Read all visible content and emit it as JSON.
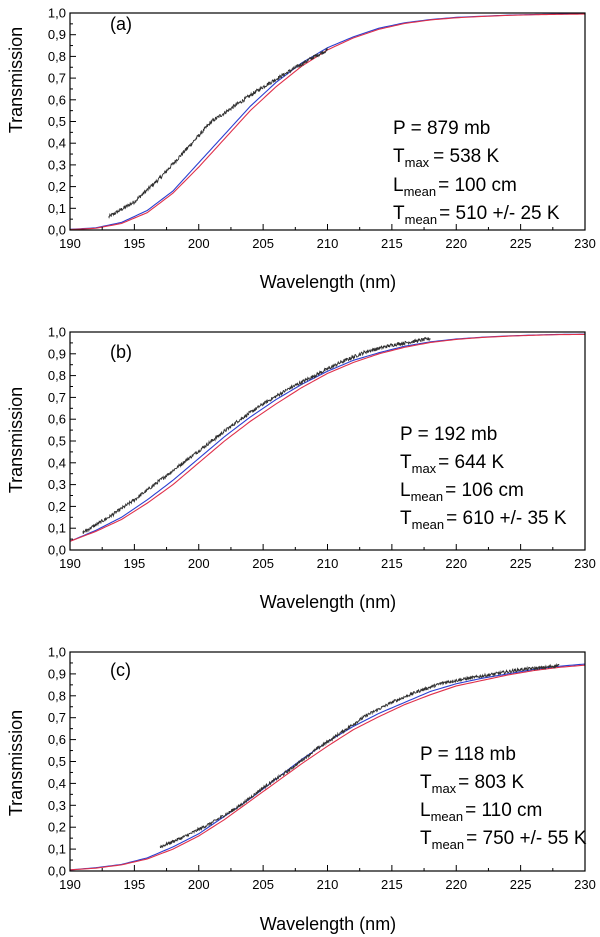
{
  "chart_data": [
    {
      "type": "line",
      "panel_label": "(a)",
      "xlabel": "Wavelength (nm)",
      "ylabel": "Transmission",
      "xlim": [
        190,
        230
      ],
      "ylim": [
        0,
        1.0
      ],
      "x_ticks": [
        "190",
        "195",
        "200",
        "205",
        "210",
        "215",
        "220",
        "225",
        "230"
      ],
      "y_ticks": [
        "0,0",
        "0,1",
        "0,2",
        "0,3",
        "0,4",
        "0,5",
        "0,6",
        "0,7",
        "0,8",
        "0,9",
        "1,0"
      ],
      "annotation": {
        "p_line": "P = 879 mb",
        "tmax_base": "T",
        "tmax_sub": "max",
        "tmax_val": "= 538 K",
        "lmean_base": "L",
        "lmean_sub": "mean",
        "lmean_val": "= 100 cm",
        "tmean_base": "T",
        "tmean_sub": "mean",
        "tmean_val": "= 510 +/- 25 K"
      },
      "series": [
        {
          "name": "measured",
          "color": "#303030",
          "noise": 0.009,
          "x": [
            193,
            195,
            197,
            199,
            201,
            203,
            205,
            207,
            209,
            210
          ],
          "y": [
            0.06,
            0.13,
            0.24,
            0.37,
            0.5,
            0.58,
            0.66,
            0.73,
            0.8,
            0.83
          ]
        },
        {
          "name": "model-blue",
          "color": "#2a3fd0",
          "x": [
            190,
            192,
            194,
            196,
            198,
            200,
            202,
            204,
            206,
            208,
            210,
            212,
            214,
            216,
            218,
            220,
            222,
            224,
            226,
            228,
            230
          ],
          "y": [
            0.003,
            0.01,
            0.035,
            0.09,
            0.18,
            0.31,
            0.44,
            0.57,
            0.68,
            0.77,
            0.84,
            0.89,
            0.93,
            0.955,
            0.97,
            0.98,
            0.985,
            0.99,
            0.993,
            0.995,
            0.996
          ]
        },
        {
          "name": "model-red",
          "color": "#e0304a",
          "x": [
            190,
            192,
            194,
            196,
            198,
            200,
            202,
            204,
            206,
            208,
            210,
            212,
            214,
            216,
            218,
            220,
            222,
            224,
            226,
            228,
            230
          ],
          "y": [
            0.002,
            0.008,
            0.03,
            0.08,
            0.17,
            0.29,
            0.42,
            0.55,
            0.66,
            0.755,
            0.83,
            0.885,
            0.925,
            0.952,
            0.968,
            0.978,
            0.984,
            0.989,
            0.992,
            0.994,
            0.995
          ]
        }
      ]
    },
    {
      "type": "line",
      "panel_label": "(b)",
      "xlabel": "Wavelength (nm)",
      "ylabel": "Transmission",
      "xlim": [
        190,
        230
      ],
      "ylim": [
        0,
        1.0
      ],
      "x_ticks": [
        "190",
        "195",
        "200",
        "205",
        "210",
        "215",
        "220",
        "225",
        "230"
      ],
      "y_ticks": [
        "0,0",
        "0,1",
        "0,2",
        "0,3",
        "0,4",
        "0,5",
        "0,6",
        "0,7",
        "0,8",
        "0,9",
        "1,0"
      ],
      "annotation": {
        "p_line": "P = 192 mb",
        "tmax_base": "T",
        "tmax_sub": "max",
        "tmax_val": "= 644 K",
        "lmean_base": "L",
        "lmean_sub": "mean",
        "lmean_val": "= 106 cm",
        "tmean_base": "T",
        "tmean_sub": "mean",
        "tmean_val": "= 610 +/- 35 K"
      },
      "series": [
        {
          "name": "measured",
          "color": "#303030",
          "noise": 0.008,
          "x": [
            191,
            193,
            195,
            197,
            199,
            201,
            203,
            205,
            207,
            209,
            211,
            213,
            215,
            217,
            218
          ],
          "y": [
            0.08,
            0.15,
            0.23,
            0.32,
            0.41,
            0.5,
            0.59,
            0.67,
            0.74,
            0.8,
            0.86,
            0.91,
            0.94,
            0.96,
            0.97
          ]
        },
        {
          "name": "model-blue",
          "color": "#2a3fd0",
          "x": [
            190,
            192,
            194,
            196,
            198,
            200,
            202,
            204,
            206,
            208,
            210,
            212,
            214,
            216,
            218,
            220,
            222,
            224,
            226,
            228,
            230
          ],
          "y": [
            0.04,
            0.09,
            0.15,
            0.23,
            0.32,
            0.42,
            0.52,
            0.61,
            0.69,
            0.76,
            0.82,
            0.87,
            0.905,
            0.935,
            0.955,
            0.968,
            0.976,
            0.982,
            0.986,
            0.989,
            0.99
          ]
        },
        {
          "name": "model-red",
          "color": "#e0304a",
          "x": [
            190,
            192,
            194,
            196,
            198,
            200,
            202,
            204,
            206,
            208,
            210,
            212,
            214,
            216,
            218,
            220,
            222,
            224,
            226,
            228,
            230
          ],
          "y": [
            0.04,
            0.085,
            0.14,
            0.215,
            0.3,
            0.4,
            0.5,
            0.59,
            0.67,
            0.745,
            0.81,
            0.86,
            0.9,
            0.93,
            0.952,
            0.966,
            0.975,
            0.981,
            0.985,
            0.988,
            0.989
          ]
        }
      ]
    },
    {
      "type": "line",
      "panel_label": "(c)",
      "xlabel": "Wavelength (nm)",
      "ylabel": "Transmission",
      "xlim": [
        190,
        230
      ],
      "ylim": [
        0,
        1.0
      ],
      "x_ticks": [
        "190",
        "195",
        "200",
        "205",
        "210",
        "215",
        "220",
        "225",
        "230"
      ],
      "y_ticks": [
        "0,0",
        "0,1",
        "0,2",
        "0,3",
        "0,4",
        "0,5",
        "0,6",
        "0,7",
        "0,8",
        "0,9",
        "1,0"
      ],
      "annotation": {
        "p_line": "P = 118 mb",
        "tmax_base": "T",
        "tmax_sub": "max",
        "tmax_val": "= 803 K",
        "lmean_base": "L",
        "lmean_sub": "mean",
        "lmean_val": "= 110 cm",
        "tmean_base": "T",
        "tmean_sub": "mean",
        "tmean_val": "= 750 +/- 55 K"
      },
      "series": [
        {
          "name": "measured",
          "color": "#303030",
          "noise": 0.007,
          "x": [
            197,
            199,
            201,
            203,
            205,
            207,
            209,
            211,
            213,
            215,
            217,
            219,
            221,
            223,
            225,
            227,
            228
          ],
          "y": [
            0.11,
            0.16,
            0.22,
            0.29,
            0.38,
            0.46,
            0.55,
            0.63,
            0.71,
            0.77,
            0.82,
            0.86,
            0.88,
            0.9,
            0.92,
            0.93,
            0.94
          ]
        },
        {
          "name": "model-blue",
          "color": "#2a3fd0",
          "x": [
            190,
            192,
            194,
            196,
            198,
            200,
            202,
            204,
            206,
            208,
            210,
            212,
            214,
            216,
            218,
            220,
            222,
            224,
            226,
            228,
            230
          ],
          "y": [
            0.005,
            0.015,
            0.03,
            0.06,
            0.11,
            0.17,
            0.25,
            0.33,
            0.42,
            0.51,
            0.59,
            0.66,
            0.72,
            0.77,
            0.82,
            0.855,
            0.88,
            0.9,
            0.92,
            0.935,
            0.945
          ]
        },
        {
          "name": "model-red",
          "color": "#e0304a",
          "x": [
            190,
            192,
            194,
            196,
            198,
            200,
            202,
            204,
            206,
            208,
            210,
            212,
            214,
            216,
            218,
            220,
            222,
            224,
            226,
            228,
            230
          ],
          "y": [
            0.005,
            0.013,
            0.028,
            0.055,
            0.1,
            0.16,
            0.235,
            0.32,
            0.405,
            0.49,
            0.57,
            0.645,
            0.705,
            0.76,
            0.805,
            0.845,
            0.87,
            0.895,
            0.915,
            0.93,
            0.94
          ]
        }
      ]
    }
  ]
}
